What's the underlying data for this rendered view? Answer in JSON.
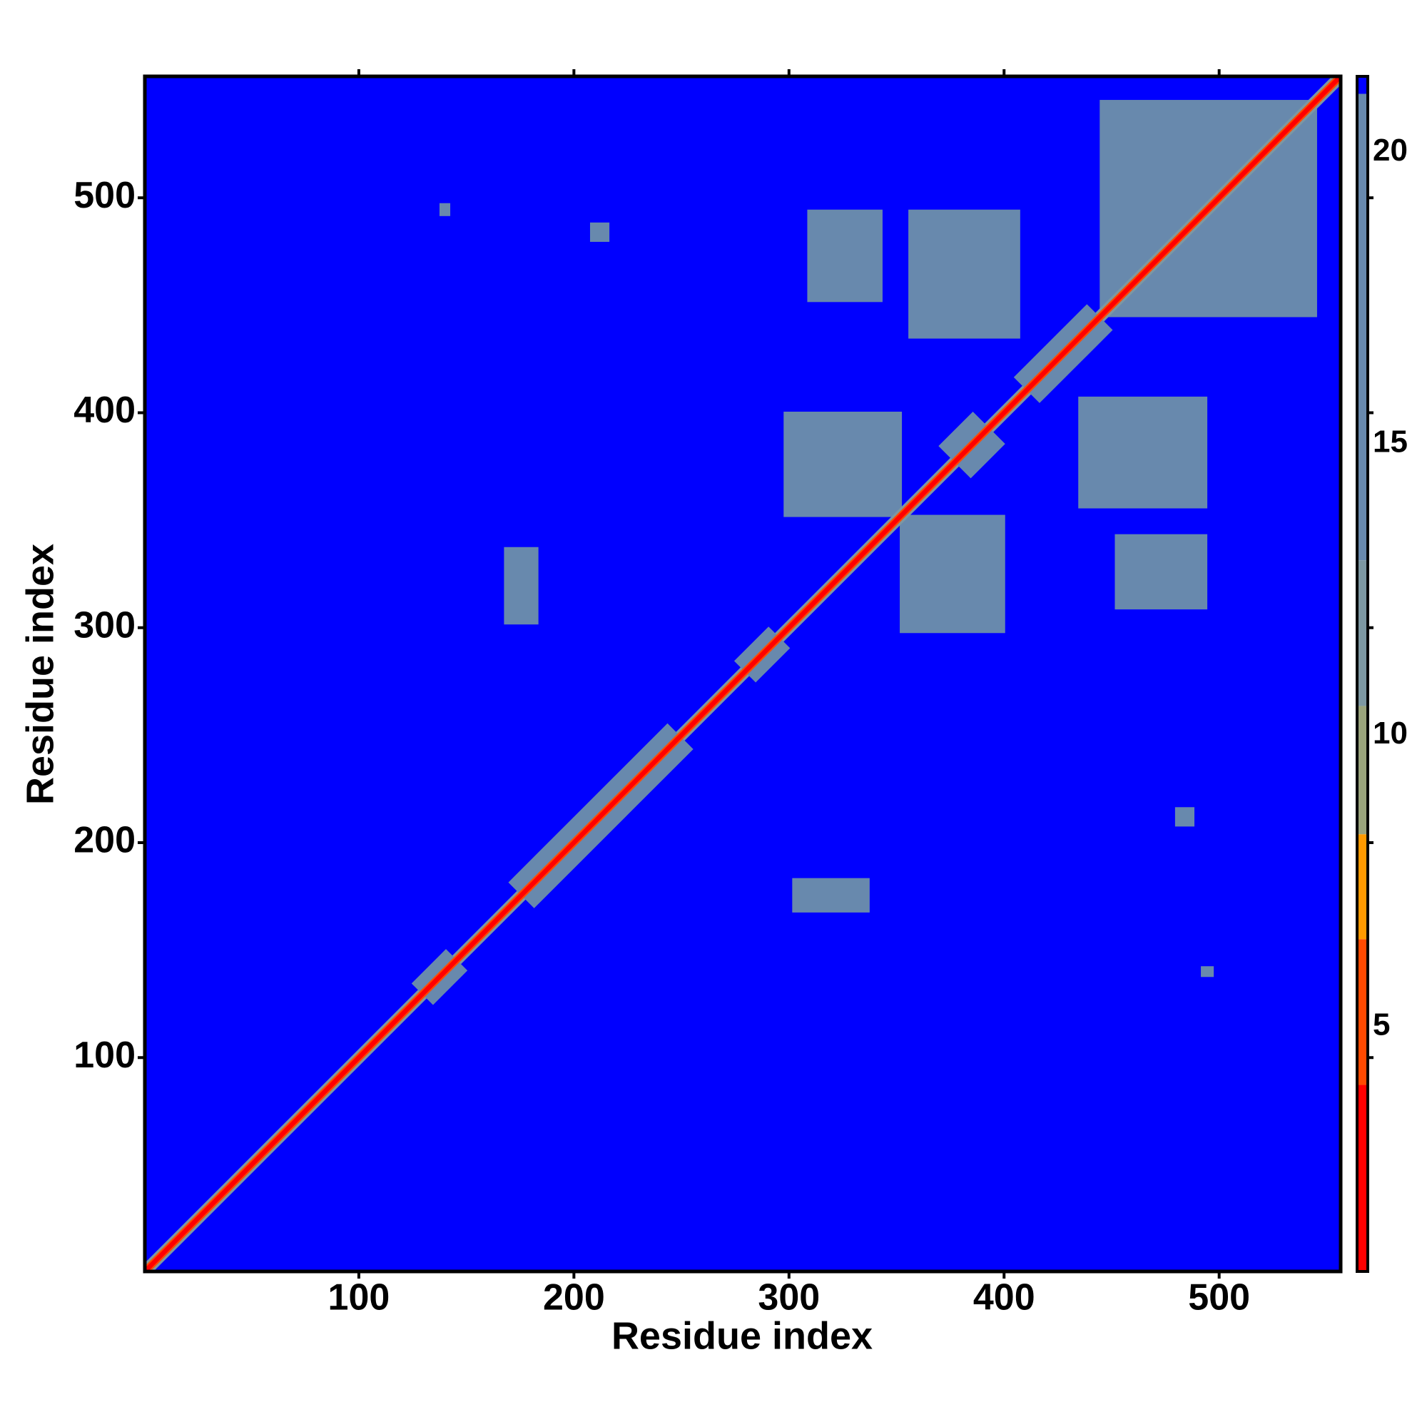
{
  "chart_data": {
    "type": "heatmap",
    "x_label": "Residue index",
    "y_label": "Residue index",
    "xlim": [
      0.5,
      556.5
    ],
    "ylim": [
      0.5,
      556.5
    ],
    "xticks": [
      100,
      200,
      300,
      400,
      500
    ],
    "yticks": [
      100,
      200,
      300,
      400,
      500
    ],
    "clim": [
      0.8,
      21.3
    ],
    "cticks": [
      5,
      10,
      15,
      20
    ],
    "colorscale": [
      {
        "value": 0.8,
        "color": "#ff0000"
      },
      {
        "value": 4,
        "color": "#ff4a00"
      },
      {
        "value": 6.5,
        "color": "#ff9a00"
      },
      {
        "value": 8.3,
        "color": "#9aa47c"
      },
      {
        "value": 10.5,
        "color": "#7d98a2"
      },
      {
        "value": 13,
        "color": "#6889ad"
      },
      {
        "value": 21,
        "color": "#0000ff"
      }
    ],
    "background": 21.3,
    "symmetric": true,
    "regions": [
      {
        "x": [
          309,
          343
        ],
        "y": [
          452,
          494
        ],
        "value": 17
      },
      {
        "x": [
          356,
          407
        ],
        "y": [
          435,
          494
        ],
        "value": 17
      },
      {
        "x": [
          168,
          183
        ],
        "y": [
          302,
          337
        ],
        "value": 17
      },
      {
        "x": [
          298,
          352
        ],
        "y": [
          352,
          400
        ],
        "value": 17
      },
      {
        "x": [
          445,
          545
        ],
        "y": [
          445,
          545
        ],
        "value": 16
      },
      {
        "x": [
          138,
          142
        ],
        "y": [
          492,
          497
        ],
        "value": 17
      },
      {
        "x": [
          208,
          216
        ],
        "y": [
          480,
          488
        ],
        "value": 17
      }
    ],
    "diagonal_bands": [
      {
        "range": [
          1,
          556
        ],
        "half_width": 4,
        "value": 11
      },
      {
        "range": [
          125,
          150
        ],
        "half_width": 10,
        "value": 13
      },
      {
        "range": [
          170,
          255
        ],
        "half_width": 12,
        "value": 13
      },
      {
        "range": [
          275,
          300
        ],
        "half_width": 10,
        "value": 13
      },
      {
        "range": [
          370,
          400
        ],
        "half_width": 15,
        "value": 13
      },
      {
        "range": [
          405,
          450
        ],
        "half_width": 12,
        "value": 13
      },
      {
        "range": [
          1,
          556
        ],
        "half_width": 2.5,
        "value": 6
      },
      {
        "range": [
          1,
          556
        ],
        "half_width": 1.5,
        "value": 2
      }
    ]
  }
}
